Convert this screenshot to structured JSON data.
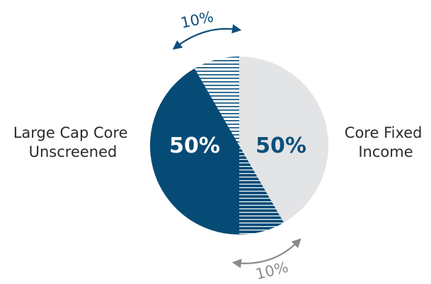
{
  "chart_data": {
    "type": "pie",
    "slices": [
      {
        "name": "Core Fixed Income",
        "value": 50,
        "label": "50%",
        "color": "#e3e4e6",
        "label_color": "#0d4f7a"
      },
      {
        "name": "Large Cap Core Unscreened",
        "value": 50,
        "label": "50%",
        "color": "#064b76",
        "label_color": "#ffffff"
      }
    ],
    "shift_bands": [
      {
        "from": "Core Fixed Income",
        "to": "Large Cap Core Unscreened",
        "value": 10,
        "label": "10%",
        "position": "bottom",
        "pattern": "horizontal-stripes",
        "color": "#064b76",
        "arrow_color": "#8a8a8a"
      },
      {
        "from": "Large Cap Core Unscreened",
        "to": "Core Fixed Income",
        "value": 10,
        "label": "10%",
        "position": "top",
        "pattern": "horizontal-stripes",
        "color": "#064b76",
        "arrow_color": "#0d4f7a"
      }
    ],
    "side_labels": {
      "left": [
        "Large Cap Core",
        "Unscreened"
      ],
      "right": [
        "Core Fixed",
        "Income"
      ]
    }
  }
}
